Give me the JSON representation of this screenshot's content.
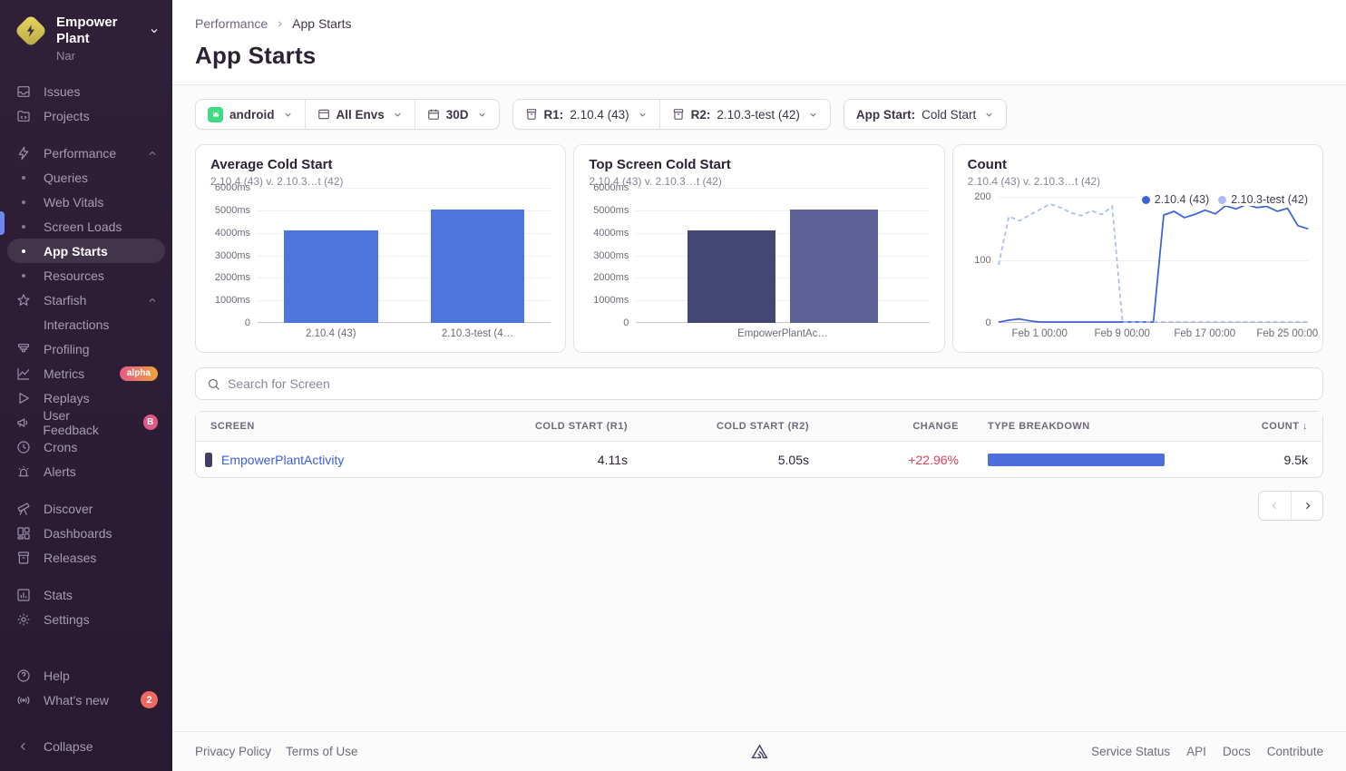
{
  "colors": {
    "accent_blue": "#4c76dc",
    "bar_navy": "#444674",
    "bar_periwinkle": "#5d6097",
    "line_primary": "#3b63d6",
    "line_secondary": "#a9bcee",
    "change_negative": "#d5445a",
    "link_blue": "#3b5edb",
    "sidebar_bg": "#2b1d35",
    "active_indicator": "#6e87ee"
  },
  "sidebar": {
    "org": {
      "name": "Empower Plant",
      "subtitle": "Nar"
    },
    "items": [
      {
        "label": "Issues"
      },
      {
        "label": "Projects"
      },
      {
        "label": "Performance"
      },
      {
        "label": "Queries"
      },
      {
        "label": "Web Vitals"
      },
      {
        "label": "Screen Loads"
      },
      {
        "label": "App Starts"
      },
      {
        "label": "Resources"
      },
      {
        "label": "Starfish"
      },
      {
        "label": "Interactions"
      },
      {
        "label": "Profiling"
      },
      {
        "label": "Metrics",
        "badge": "alpha"
      },
      {
        "label": "Replays"
      },
      {
        "label": "User Feedback",
        "badge": "B"
      },
      {
        "label": "Crons"
      },
      {
        "label": "Alerts"
      },
      {
        "label": "Discover"
      },
      {
        "label": "Dashboards"
      },
      {
        "label": "Releases"
      },
      {
        "label": "Stats"
      },
      {
        "label": "Settings"
      },
      {
        "label": "Help"
      },
      {
        "label": "What's new",
        "badge": "2"
      },
      {
        "label": "Collapse"
      }
    ]
  },
  "header": {
    "breadcrumb_parent": "Performance",
    "breadcrumb_current": "App Starts",
    "title": "App Starts"
  },
  "filters": {
    "project": "android",
    "environment": "All Envs",
    "date_range": "30D",
    "r1_label": "R1:",
    "r1_value": "2.10.4 (43)",
    "r2_label": "R2:",
    "r2_value": "2.10.3-test (42)",
    "app_start_label": "App Start:",
    "app_start_value": "Cold Start"
  },
  "chart_data": [
    {
      "type": "bar",
      "title": "Average Cold Start",
      "subtitle": "2.10.4 (43) v. 2.10.3…t (42)",
      "categories": [
        "2.10.4 (43)",
        "2.10.3-test (4…"
      ],
      "values": [
        4110,
        5050
      ],
      "unit": "ms",
      "ylim": [
        0,
        6000
      ],
      "yticks": [
        "6000ms",
        "5000ms",
        "4000ms",
        "3000ms",
        "2000ms",
        "1000ms",
        "0"
      ],
      "bar_colors": [
        "#4c76dc",
        "#4c76dc"
      ]
    },
    {
      "type": "bar",
      "title": "Top Screen Cold Start",
      "subtitle": "2.10.4 (43) v. 2.10.3…t (42)",
      "categories": [
        "EmpowerPlantAc…"
      ],
      "values": [
        4110,
        5050
      ],
      "unit": "ms",
      "ylim": [
        0,
        6000
      ],
      "yticks": [
        "6000ms",
        "5000ms",
        "4000ms",
        "3000ms",
        "2000ms",
        "1000ms",
        "0"
      ],
      "bar_colors": [
        "#444674",
        "#5d6097"
      ]
    },
    {
      "type": "line",
      "title": "Count",
      "subtitle": "2.10.4 (43) v. 2.10.3…t (42)",
      "ylim": [
        0,
        200
      ],
      "yticks": [
        "200",
        "100",
        "0"
      ],
      "xticks": [
        "Feb 1 00:00",
        "Feb 9 00:00",
        "Feb 17 00:00",
        "Feb 25 00:00"
      ],
      "xtick_days": [
        4,
        12,
        20,
        28
      ],
      "days_total": 30,
      "series": [
        {
          "name": "2.10.4 (43)",
          "style": "solid",
          "color": "#3b63d6",
          "values": [
            0,
            3,
            5,
            2,
            0,
            0,
            0,
            0,
            0,
            0,
            0,
            0,
            0,
            0,
            0,
            0,
            172,
            178,
            168,
            173,
            180,
            174,
            187,
            182,
            189,
            184,
            186,
            178,
            183,
            155,
            150
          ]
        },
        {
          "name": "2.10.3-test (42)",
          "style": "dashed",
          "color": "#a9bcee",
          "values": [
            92,
            170,
            163,
            172,
            181,
            190,
            184,
            176,
            171,
            179,
            173,
            186,
            0,
            0,
            0,
            0,
            0,
            0,
            0,
            0,
            0,
            0,
            0,
            0,
            0,
            0,
            0,
            0,
            0,
            0,
            0
          ]
        }
      ],
      "legend_position": "top-right"
    }
  ],
  "search": {
    "placeholder": "Search for Screen"
  },
  "table": {
    "columns": [
      "Screen",
      "Cold Start (R1)",
      "Cold Start (R2)",
      "Change",
      "Type Breakdown",
      "Count"
    ],
    "sort_column": "Count",
    "sort_arrow": "↓",
    "rows": [
      {
        "screen": "EmpowerPlantActivity",
        "cold_start_r1": "4.11s",
        "cold_start_r2": "5.05s",
        "change": "+22.96%",
        "type_breakdown_pct": 100,
        "count": "9.5k"
      }
    ]
  },
  "footer": {
    "privacy": "Privacy Policy",
    "terms": "Terms of Use",
    "service_status": "Service Status",
    "api": "API",
    "docs": "Docs",
    "contribute": "Contribute"
  }
}
